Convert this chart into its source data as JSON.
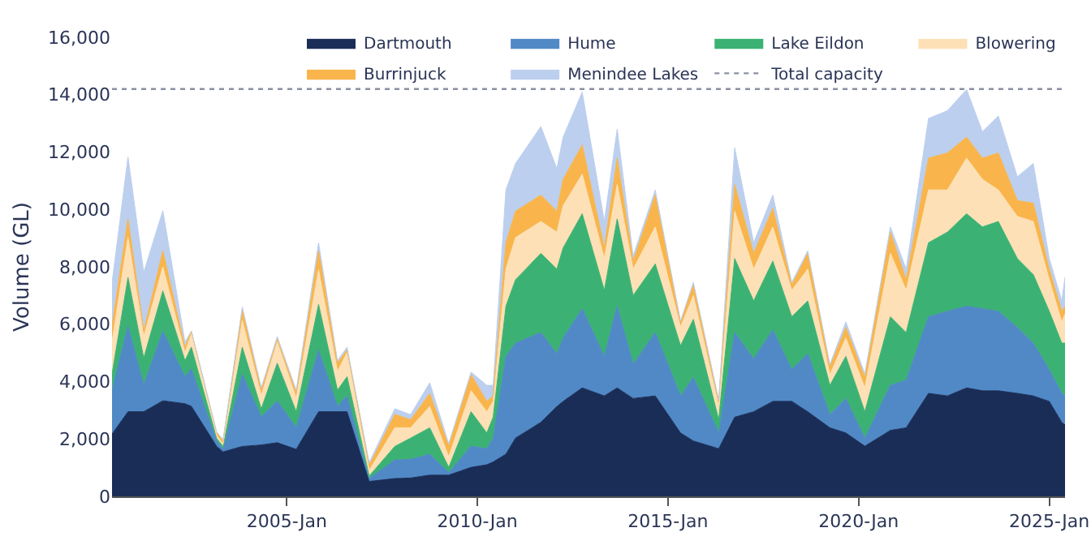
{
  "chart_data": {
    "type": "area",
    "stacked": true,
    "ylabel": "Volume (GL)",
    "legend": "top right",
    "grid": false,
    "x": [
      "2000-06",
      "2000-11",
      "2001-04",
      "2001-10",
      "2002-05",
      "2002-07",
      "2003-03",
      "2003-05",
      "2003-11",
      "2004-05",
      "2004-10",
      "2005-04",
      "2005-11",
      "2006-05",
      "2006-08",
      "2007-03",
      "2007-11",
      "2008-04",
      "2008-10",
      "2009-04",
      "2009-11",
      "2010-04",
      "2010-06",
      "2010-10",
      "2011-01",
      "2011-09",
      "2012-02",
      "2012-04",
      "2012-10",
      "2013-05",
      "2013-09",
      "2014-02",
      "2014-09",
      "2015-05",
      "2015-09",
      "2016-05",
      "2016-10",
      "2017-04",
      "2017-10",
      "2018-04",
      "2018-09",
      "2019-04",
      "2019-09",
      "2020-03",
      "2020-11",
      "2021-04",
      "2021-11",
      "2022-05",
      "2022-11",
      "2023-04",
      "2023-09",
      "2024-03",
      "2024-08",
      "2025-01",
      "2025-05",
      "2025-06"
    ],
    "series": [
      {
        "name": "Dartmouth",
        "color": "#1a2d57",
        "values": [
          2170,
          2950,
          2950,
          3330,
          3230,
          3140,
          1740,
          1550,
          1740,
          1790,
          1870,
          1640,
          2950,
          2950,
          2950,
          520,
          620,
          640,
          740,
          740,
          1010,
          1100,
          1200,
          1470,
          2030,
          2580,
          3130,
          3310,
          3780,
          3500,
          3780,
          3410,
          3500,
          2210,
          1930,
          1660,
          2760,
          2950,
          3310,
          3310,
          2950,
          2390,
          2210,
          1750,
          2300,
          2390,
          3590,
          3500,
          3780,
          3680,
          3680,
          3590,
          3500,
          3310,
          2580,
          2490
        ]
      },
      {
        "name": "Hume",
        "color": "#5089c6",
        "values": [
          1530,
          2990,
          940,
          2430,
          940,
          1310,
          190,
          90,
          2520,
          980,
          1460,
          750,
          2150,
          190,
          560,
          100,
          650,
          650,
          730,
          90,
          740,
          560,
          830,
          3410,
          3310,
          3130,
          1840,
          2210,
          2760,
          1380,
          2850,
          1190,
          2210,
          1290,
          2210,
          550,
          2950,
          1840,
          2490,
          1110,
          2020,
          460,
          1200,
          280,
          1570,
          1660,
          2670,
          2950,
          2850,
          2860,
          2770,
          2300,
          1840,
          1110,
          1010,
          1010
        ]
      },
      {
        "name": "Lake Eildon",
        "color": "#3bb273",
        "values": [
          560,
          1690,
          930,
          1400,
          560,
          750,
          90,
          100,
          940,
          280,
          1310,
          560,
          1590,
          560,
          660,
          90,
          470,
          740,
          920,
          180,
          1200,
          550,
          730,
          1750,
          2210,
          2760,
          2950,
          3140,
          3310,
          2300,
          3040,
          2400,
          2390,
          1750,
          2030,
          460,
          2580,
          2020,
          2400,
          1840,
          1840,
          1020,
          1470,
          920,
          2390,
          1660,
          2580,
          2760,
          3220,
          2850,
          3130,
          2400,
          2390,
          2030,
          1750,
          1840
        ]
      },
      {
        "name": "Blowering",
        "color": "#fde0b5",
        "values": [
          1120,
          1400,
          750,
          840,
          280,
          460,
          90,
          90,
          930,
          460,
          740,
          470,
          1210,
          660,
          840,
          190,
          650,
          360,
          740,
          370,
          730,
          740,
          550,
          1290,
          1470,
          1110,
          1290,
          1470,
          1380,
          1110,
          1200,
          920,
          1290,
          650,
          830,
          460,
          1650,
          1110,
          1190,
          920,
          1110,
          370,
          640,
          830,
          2210,
          1470,
          1840,
          1470,
          1940,
          1660,
          1100,
          1470,
          1850,
          1100,
          740,
          1010
        ]
      },
      {
        "name": "Burrinjuck",
        "color": "#f9b54b",
        "values": [
          560,
          650,
          190,
          560,
          190,
          100,
          100,
          100,
          370,
          190,
          100,
          190,
          660,
          280,
          90,
          180,
          470,
          280,
          460,
          370,
          560,
          360,
          190,
          920,
          920,
          920,
          730,
          920,
          1020,
          370,
          920,
          280,
          1110,
          180,
          370,
          180,
          930,
          550,
          650,
          190,
          550,
          270,
          370,
          360,
          740,
          370,
          1110,
          1290,
          730,
          740,
          1290,
          550,
          640,
          370,
          370,
          280
        ]
      },
      {
        "name": "Menindee Lakes",
        "color": "#bccfee",
        "values": [
          1500,
          2150,
          2050,
          1400,
          180,
          0,
          30,
          50,
          100,
          90,
          90,
          90,
          280,
          90,
          100,
          100,
          190,
          180,
          370,
          90,
          90,
          560,
          370,
          1840,
          1660,
          2390,
          1480,
          1470,
          1840,
          920,
          1010,
          180,
          180,
          30,
          90,
          40,
          1280,
          370,
          460,
          90,
          90,
          90,
          190,
          130,
          180,
          370,
          1380,
          1470,
          1660,
          920,
          1290,
          830,
          1380,
          370,
          360,
          1010
        ]
      }
    ],
    "xlim": [
      "2000-06",
      "2025-06"
    ],
    "xticks": [
      {
        "value": "2005-01",
        "label": "2005-Jan"
      },
      {
        "value": "2010-01",
        "label": "2010-Jan"
      },
      {
        "value": "2015-01",
        "label": "2015-Jan"
      },
      {
        "value": "2020-01",
        "label": "2020-Jan"
      },
      {
        "value": "2025-01",
        "label": "2025-Jan"
      }
    ],
    "ylim": [
      0,
      16000
    ],
    "yticks": [
      0,
      {
        "value": 2000,
        "label": "2,000"
      },
      {
        "value": 4000,
        "label": "4,000"
      },
      {
        "value": 6000,
        "label": "6,000"
      },
      {
        "value": 8000,
        "label": "8,000"
      },
      {
        "value": 10000,
        "label": "10,000"
      },
      {
        "value": 12000,
        "label": "12,000"
      },
      {
        "value": 14000,
        "label": "14,000"
      },
      {
        "value": 16000,
        "label": "16,000"
      }
    ],
    "ref_lines": [
      {
        "axis": "y",
        "value": 14200,
        "label": "Total capacity",
        "color": "#8a8fa3",
        "line_style": "dotted"
      }
    ]
  }
}
